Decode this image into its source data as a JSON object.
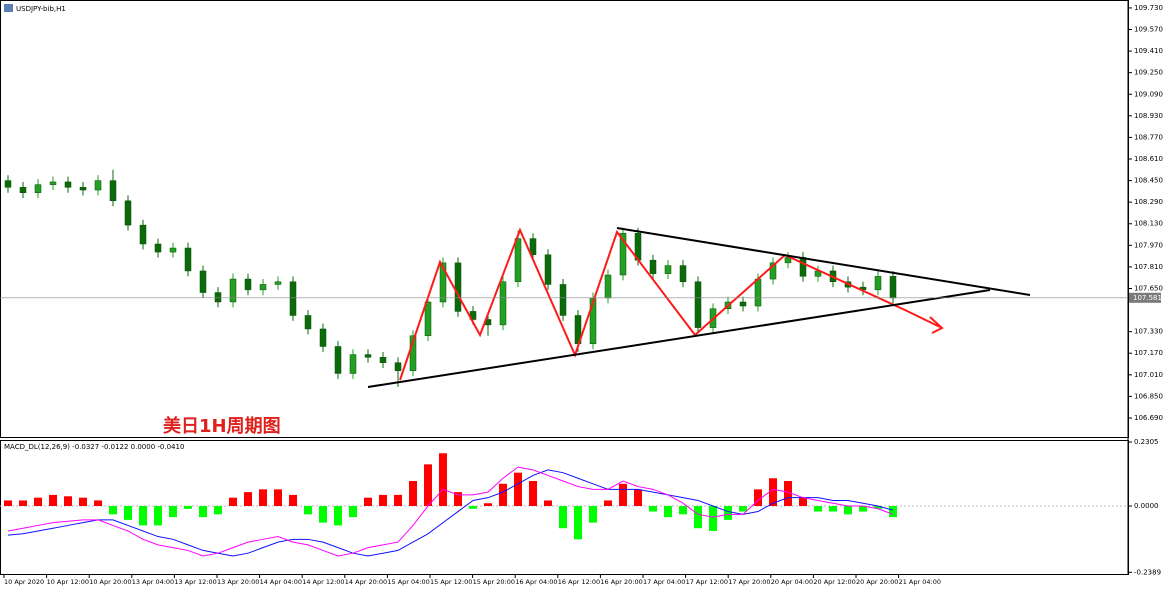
{
  "window": {
    "title": "USDJPY-bib,H1"
  },
  "chart_data": [
    {
      "type": "candlestick",
      "annotation": "美日1H周期图",
      "bull_color": "#22a022",
      "bear_color": "#0b6b0b",
      "open": [
        108.45,
        108.4,
        108.36,
        108.42,
        108.44,
        108.4,
        108.38,
        108.45,
        108.3,
        108.12,
        107.98,
        107.92,
        107.95,
        107.78,
        107.62,
        107.55,
        107.72,
        107.64,
        107.68,
        107.7,
        107.45,
        107.35,
        107.22,
        107.02,
        107.16,
        107.14,
        107.1,
        107.04,
        107.3,
        107.55,
        107.84,
        107.48,
        107.42,
        107.38,
        107.7,
        108.02,
        107.9,
        107.68,
        107.45,
        107.24,
        107.58,
        107.75,
        108.06,
        107.86,
        107.76,
        107.82,
        107.7,
        107.36,
        107.5,
        107.55,
        107.52,
        107.72,
        107.84,
        107.88,
        107.74,
        107.78,
        107.7,
        107.66,
        107.64,
        107.74
      ],
      "high": [
        108.49,
        108.44,
        108.46,
        108.48,
        108.48,
        108.44,
        108.49,
        108.53,
        108.34,
        108.16,
        108.02,
        107.99,
        107.99,
        107.82,
        107.66,
        107.76,
        107.76,
        107.72,
        107.74,
        107.74,
        107.49,
        107.39,
        107.26,
        107.2,
        107.2,
        107.18,
        107.14,
        107.34,
        107.59,
        107.88,
        107.88,
        107.52,
        107.46,
        107.74,
        108.08,
        108.06,
        107.94,
        107.72,
        107.49,
        107.62,
        107.79,
        108.1,
        108.1,
        107.9,
        107.86,
        107.86,
        107.74,
        107.54,
        107.59,
        107.59,
        107.76,
        107.88,
        107.92,
        107.92,
        107.82,
        107.82,
        107.74,
        107.7,
        107.78,
        107.78
      ],
      "low": [
        108.36,
        108.32,
        108.32,
        108.38,
        108.36,
        108.34,
        108.34,
        108.26,
        108.08,
        107.94,
        107.88,
        107.88,
        107.74,
        107.58,
        107.51,
        107.51,
        107.6,
        107.6,
        107.64,
        107.41,
        107.31,
        107.18,
        106.98,
        106.98,
        107.1,
        107.06,
        106.92,
        107.0,
        107.26,
        107.51,
        107.44,
        107.38,
        107.3,
        107.34,
        107.66,
        107.86,
        107.64,
        107.41,
        107.18,
        107.2,
        107.54,
        107.71,
        107.82,
        107.72,
        107.72,
        107.66,
        107.32,
        107.32,
        107.46,
        107.48,
        107.48,
        107.68,
        107.8,
        107.7,
        107.7,
        107.66,
        107.62,
        107.6,
        107.6,
        107.54
      ],
      "close": [
        108.4,
        108.36,
        108.42,
        108.44,
        108.4,
        108.38,
        108.45,
        108.3,
        108.12,
        107.98,
        107.92,
        107.95,
        107.78,
        107.62,
        107.55,
        107.72,
        107.64,
        107.68,
        107.7,
        107.45,
        107.35,
        107.22,
        107.02,
        107.16,
        107.14,
        107.1,
        107.04,
        107.3,
        107.55,
        107.84,
        107.48,
        107.42,
        107.38,
        107.7,
        108.02,
        107.9,
        107.68,
        107.45,
        107.24,
        107.58,
        107.75,
        108.06,
        107.86,
        107.76,
        107.82,
        107.7,
        107.36,
        107.5,
        107.55,
        107.52,
        107.72,
        107.84,
        107.88,
        107.74,
        107.78,
        107.7,
        107.66,
        107.64,
        107.74,
        107.58
      ],
      "current_price": 107.581,
      "ylim": [
        106.549,
        109.774
      ],
      "yticks": [
        {
          "value": 109.73,
          "label": "109.730"
        },
        {
          "value": 109.57,
          "label": "109.570"
        },
        {
          "value": 109.41,
          "label": "109.410"
        },
        {
          "value": 109.25,
          "label": "109.250"
        },
        {
          "value": 109.09,
          "label": "109.090"
        },
        {
          "value": 108.93,
          "label": "108.930"
        },
        {
          "value": 108.77,
          "label": "108.770"
        },
        {
          "value": 108.61,
          "label": "108.610"
        },
        {
          "value": 108.45,
          "label": "108.450"
        },
        {
          "value": 108.29,
          "label": "108.290"
        },
        {
          "value": 108.13,
          "label": "108.130"
        },
        {
          "value": 107.97,
          "label": "107.970"
        },
        {
          "value": 107.81,
          "label": "107.810"
        },
        {
          "value": 107.65,
          "label": "107.650"
        },
        {
          "value": 107.33,
          "label": "107.330"
        },
        {
          "value": 107.17,
          "label": "107.170"
        },
        {
          "value": 107.01,
          "label": "107.010"
        },
        {
          "value": 106.85,
          "label": "106.850"
        },
        {
          "value": 106.69,
          "label": "106.690"
        }
      ]
    },
    {
      "type": "macd",
      "title": "MACD_DL(12,26,9) -0.0327 -0.0122 0.0000 -0.0410",
      "positive_color": "#ff0000",
      "negative_color": "#00ff00",
      "main_color": "#ff00ff",
      "signal_color": "#1010ff",
      "histogram": [
        0.02,
        0.02,
        0.03,
        0.04,
        0.035,
        0.03,
        0.02,
        -0.03,
        -0.05,
        -0.07,
        -0.07,
        -0.04,
        -0.01,
        -0.04,
        -0.03,
        0.03,
        0.05,
        0.06,
        0.06,
        0.04,
        -0.03,
        -0.06,
        -0.07,
        -0.04,
        0.03,
        0.04,
        0.04,
        0.09,
        0.15,
        0.19,
        0.05,
        -0.01,
        0.01,
        0.08,
        0.12,
        0.09,
        0.02,
        -0.08,
        -0.12,
        -0.06,
        0.02,
        0.08,
        0.06,
        -0.02,
        -0.04,
        -0.03,
        -0.08,
        -0.09,
        -0.05,
        -0.02,
        0.06,
        0.1,
        0.09,
        0.03,
        -0.02,
        -0.02,
        -0.03,
        -0.02,
        -0.01,
        -0.04
      ],
      "main": [
        -0.09,
        -0.08,
        -0.07,
        -0.06,
        -0.055,
        -0.05,
        -0.05,
        -0.07,
        -0.09,
        -0.12,
        -0.14,
        -0.15,
        -0.16,
        -0.18,
        -0.17,
        -0.15,
        -0.13,
        -0.12,
        -0.11,
        -0.13,
        -0.14,
        -0.16,
        -0.18,
        -0.17,
        -0.15,
        -0.14,
        -0.13,
        -0.07,
        0.0,
        0.06,
        0.04,
        0.04,
        0.05,
        0.1,
        0.14,
        0.13,
        0.11,
        0.09,
        0.07,
        0.06,
        0.06,
        0.09,
        0.07,
        0.06,
        0.04,
        0.01,
        -0.03,
        -0.04,
        -0.03,
        -0.03,
        0.02,
        0.06,
        0.05,
        0.03,
        0.02,
        0.01,
        0.0,
        0.0,
        -0.01,
        -0.03
      ],
      "signal": [
        -0.105,
        -0.1,
        -0.09,
        -0.08,
        -0.07,
        -0.06,
        -0.05,
        -0.05,
        -0.07,
        -0.09,
        -0.11,
        -0.12,
        -0.14,
        -0.16,
        -0.17,
        -0.18,
        -0.17,
        -0.15,
        -0.13,
        -0.12,
        -0.12,
        -0.13,
        -0.15,
        -0.17,
        -0.18,
        -0.17,
        -0.16,
        -0.13,
        -0.1,
        -0.06,
        -0.02,
        0.02,
        0.03,
        0.05,
        0.08,
        0.11,
        0.13,
        0.12,
        0.1,
        0.08,
        0.06,
        0.06,
        0.06,
        0.05,
        0.04,
        0.03,
        0.02,
        0.0,
        -0.02,
        -0.03,
        -0.02,
        0.01,
        0.03,
        0.03,
        0.03,
        0.02,
        0.02,
        0.01,
        0.0,
        -0.015
      ],
      "ylim": [
        -0.2485,
        0.2377
      ],
      "yticks": [
        0.2305,
        {
          "value": 0,
          "label": "0.0000"
        },
        -0.2389
      ],
      "time_labels": [
        "10 Apr 2020",
        "10 Apr 12:00",
        "10 Apr 20:00",
        "13 Apr 04:00",
        "13 Apr 12:00",
        "13 Apr 20:00",
        "14 Apr 04:00",
        "14 Apr 12:00",
        "14 Apr 20:00",
        "15 Apr 04:00",
        "15 Apr 12:00",
        "15 Apr 20:00",
        "16 Apr 04:00",
        "16 Apr 12:00",
        "16 Apr 20:00",
        "17 Apr 04:00",
        "17 Apr 12:00",
        "17 Apr 20:00",
        "20 Apr 04:00",
        "20 Apr 12:00",
        "20 Apr 20:00",
        "21 Apr 04:00"
      ]
    }
  ]
}
